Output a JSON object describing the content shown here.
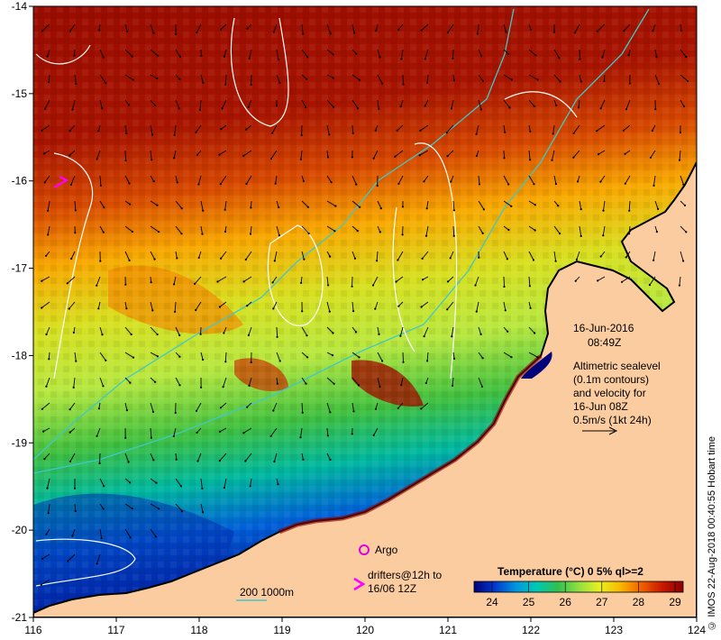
{
  "map": {
    "x_axis": {
      "min": 116,
      "max": 124,
      "ticks": [
        "116",
        "117",
        "118",
        "119",
        "120",
        "121",
        "122",
        "123",
        "124"
      ]
    },
    "y_axis": {
      "min": -21,
      "max": -14,
      "ticks": [
        "-14",
        "-15",
        "-16",
        "-17",
        "-18",
        "-19",
        "-20",
        "-21"
      ]
    },
    "date": "16-Jun-2016",
    "time": "08:49Z",
    "description_lines": [
      "Altimetric sealevel",
      "(0.1m contours)",
      "and velocity for",
      "16-Jun 08Z",
      "0.5m/s (1kt 24h)"
    ],
    "legend": {
      "argo_label": "Argo",
      "drifters_line1": "drifters@12h to",
      "drifters_line2": "16/06 12Z"
    },
    "depth_contour_label": "200  1000m",
    "colorbar": {
      "title": "Temperature (°C) 0 5% ql>=2",
      "ticks": [
        "24",
        "25",
        "26",
        "27",
        "28",
        "29"
      ],
      "colors": [
        "#00007a",
        "#0038d0",
        "#0096e0",
        "#00c8b4",
        "#30c050",
        "#90e040",
        "#e8f020",
        "#f8b800",
        "#f06000",
        "#c81800",
        "#8a0000"
      ]
    },
    "credit": "© IMOS 22-Aug-2018 00:40:55 Hobart time",
    "palette": {
      "land": "#fbcca0",
      "ocean_hot": "#a01000",
      "ocean_cold": "#00007a",
      "coast": "#000000"
    }
  }
}
